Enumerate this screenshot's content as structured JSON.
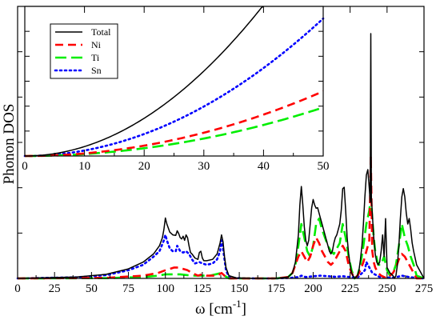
{
  "colors": {
    "Total": "#000000",
    "Ni": "#ff0000",
    "Ti": "#00ee00",
    "Sn": "#0000ff",
    "axes": "#000000",
    "background": "#ffffff"
  },
  "chart_data": [
    {
      "type": "line",
      "role": "main",
      "title": "",
      "xlabel": "ω [cm⁻¹]",
      "xlabel_parts": {
        "base": "ω [cm",
        "sup": "-1",
        "close": "]"
      },
      "ylabel": "Phonon DOS",
      "xlim": [
        0,
        275
      ],
      "ylim": [
        0,
        1.0
      ],
      "grid": false,
      "x_ticks": [
        0,
        25,
        50,
        75,
        100,
        125,
        150,
        175,
        200,
        225,
        250,
        275
      ],
      "x_tick_labels": [
        "0",
        "25",
        "50",
        "75",
        "100",
        "125",
        "150",
        "175",
        "200",
        "225",
        "250",
        "275"
      ],
      "y_tick_labels_visible": false,
      "series": [
        {
          "name": "Total",
          "style": "solid",
          "x": [
            0,
            40,
            60,
            75,
            85,
            92,
            96,
            98,
            99,
            100,
            101,
            103,
            105,
            107,
            108,
            109,
            110,
            111,
            112,
            113,
            114,
            115,
            116,
            117,
            118,
            120,
            122,
            123,
            124,
            125,
            126,
            128,
            132,
            135,
            137,
            138,
            139,
            140,
            141,
            143,
            148,
            160,
            175,
            183,
            186,
            188,
            190,
            191,
            192,
            193,
            194,
            195,
            196,
            197,
            198,
            199,
            200,
            201,
            202,
            203,
            204,
            205,
            206,
            207,
            208,
            209,
            210,
            211,
            212,
            213,
            214,
            215,
            216,
            217,
            218,
            219,
            220,
            221,
            222,
            223,
            224,
            225,
            226,
            228,
            230,
            231,
            232,
            233,
            234,
            235,
            236,
            237,
            238,
            238.6,
            239,
            239.4,
            240,
            241,
            242,
            243,
            244,
            245,
            246,
            247,
            248,
            249,
            250,
            252,
            254,
            255,
            256,
            257,
            258,
            259,
            260,
            261,
            262,
            263,
            264,
            265,
            266,
            267,
            268,
            270,
            275
          ],
          "y": [
            0,
            0.005,
            0.015,
            0.035,
            0.06,
            0.09,
            0.12,
            0.15,
            0.18,
            0.222,
            0.2,
            0.17,
            0.16,
            0.158,
            0.175,
            0.165,
            0.15,
            0.145,
            0.155,
            0.14,
            0.16,
            0.15,
            0.12,
            0.095,
            0.09,
            0.075,
            0.07,
            0.095,
            0.1,
            0.075,
            0.065,
            0.065,
            0.07,
            0.09,
            0.13,
            0.16,
            0.135,
            0.08,
            0.04,
            0.01,
            0.002,
            0.0,
            0.0,
            0.005,
            0.02,
            0.06,
            0.16,
            0.27,
            0.338,
            0.27,
            0.19,
            0.14,
            0.12,
            0.14,
            0.2,
            0.26,
            0.29,
            0.27,
            0.258,
            0.26,
            0.24,
            0.22,
            0.2,
            0.18,
            0.16,
            0.14,
            0.12,
            0.1,
            0.09,
            0.1,
            0.13,
            0.15,
            0.16,
            0.18,
            0.2,
            0.25,
            0.33,
            0.335,
            0.25,
            0.15,
            0.09,
            0.05,
            0.02,
            0.0,
            0.01,
            0.03,
            0.07,
            0.12,
            0.2,
            0.3,
            0.38,
            0.4,
            0.33,
            0.28,
            0.9,
            0.3,
            0.24,
            0.15,
            0.09,
            0.06,
            0.05,
            0.06,
            0.1,
            0.16,
            0.08,
            0.22,
            0.04,
            0.02,
            0.01,
            0.0,
            0.01,
            0.05,
            0.12,
            0.22,
            0.3,
            0.33,
            0.3,
            0.24,
            0.2,
            0.22,
            0.18,
            0.13,
            0.1,
            0.05,
            0.0
          ]
        },
        {
          "name": "Ni",
          "style": "dashed",
          "x": [
            0,
            60,
            85,
            95,
            100,
            103,
            106,
            109,
            112,
            115,
            118,
            122,
            125,
            128,
            135,
            138,
            140,
            143,
            160,
            175,
            183,
            186,
            188,
            190,
            192,
            194,
            196,
            198,
            200,
            202,
            204,
            206,
            208,
            210,
            212,
            214,
            216,
            218,
            220,
            222,
            224,
            226,
            228,
            230,
            232,
            234,
            236,
            238,
            239,
            240,
            241,
            242,
            244,
            246,
            248,
            250,
            252,
            254,
            256,
            258,
            260,
            262,
            264,
            266,
            268,
            270,
            275
          ],
          "y": [
            0,
            0.002,
            0.01,
            0.02,
            0.03,
            0.035,
            0.04,
            0.04,
            0.035,
            0.03,
            0.02,
            0.01,
            0.015,
            0.01,
            0.01,
            0.02,
            0.01,
            0.0,
            0.0,
            0.0,
            0.005,
            0.02,
            0.05,
            0.08,
            0.1,
            0.08,
            0.06,
            0.08,
            0.12,
            0.15,
            0.13,
            0.1,
            0.08,
            0.06,
            0.05,
            0.06,
            0.08,
            0.1,
            0.12,
            0.1,
            0.05,
            0.02,
            0.0,
            0.01,
            0.03,
            0.06,
            0.1,
            0.14,
            0.45,
            0.1,
            0.06,
            0.04,
            0.02,
            0.01,
            0.005,
            0.0,
            0.01,
            0.02,
            0.04,
            0.07,
            0.09,
            0.08,
            0.06,
            0.04,
            0.02,
            0.0,
            0.0
          ]
        },
        {
          "name": "Ti",
          "style": "longdash",
          "x": [
            0,
            60,
            85,
            95,
            100,
            105,
            110,
            115,
            120,
            125,
            130,
            138,
            140,
            143,
            160,
            175,
            183,
            186,
            188,
            190,
            192,
            194,
            196,
            198,
            200,
            202,
            204,
            206,
            208,
            210,
            212,
            214,
            216,
            218,
            220,
            222,
            224,
            226,
            228,
            230,
            232,
            234,
            236,
            238,
            239,
            240,
            241,
            242,
            244,
            246,
            248,
            250,
            252,
            254,
            256,
            258,
            260,
            262,
            264,
            266,
            268,
            270,
            275
          ],
          "y": [
            0,
            0.001,
            0.005,
            0.01,
            0.015,
            0.015,
            0.015,
            0.012,
            0.01,
            0.01,
            0.01,
            0.02,
            0.01,
            0.0,
            0.0,
            0.0,
            0.005,
            0.02,
            0.05,
            0.12,
            0.2,
            0.15,
            0.1,
            0.08,
            0.12,
            0.2,
            0.22,
            0.18,
            0.15,
            0.12,
            0.1,
            0.09,
            0.11,
            0.13,
            0.2,
            0.15,
            0.08,
            0.03,
            0.0,
            0.01,
            0.05,
            0.12,
            0.2,
            0.25,
            0.3,
            0.22,
            0.15,
            0.1,
            0.05,
            0.05,
            0.08,
            0.03,
            0.01,
            0.02,
            0.05,
            0.12,
            0.2,
            0.15,
            0.12,
            0.08,
            0.05,
            0.01,
            0.0
          ]
        },
        {
          "name": "Sn",
          "style": "dotted",
          "x": [
            0,
            40,
            60,
            75,
            85,
            92,
            96,
            99,
            100,
            101,
            103,
            105,
            107,
            108,
            110,
            112,
            114,
            116,
            118,
            120,
            123,
            125,
            128,
            132,
            135,
            137,
            138,
            139,
            140,
            141,
            143,
            148,
            160,
            175,
            185,
            190,
            192,
            195,
            200,
            205,
            210,
            215,
            220,
            225,
            230,
            235,
            236,
            238,
            240,
            245,
            250,
            255,
            260,
            265,
            270,
            275
          ],
          "y": [
            0,
            0.004,
            0.012,
            0.03,
            0.05,
            0.08,
            0.1,
            0.14,
            0.16,
            0.14,
            0.11,
            0.1,
            0.1,
            0.12,
            0.1,
            0.095,
            0.1,
            0.09,
            0.07,
            0.055,
            0.06,
            0.055,
            0.05,
            0.055,
            0.07,
            0.1,
            0.14,
            0.11,
            0.07,
            0.03,
            0.005,
            0.001,
            0.0,
            0.0,
            0.002,
            0.005,
            0.01,
            0.005,
            0.008,
            0.01,
            0.008,
            0.006,
            0.008,
            0.005,
            0.003,
            0.03,
            0.06,
            0.04,
            0.02,
            0.005,
            0.003,
            0.003,
            0.01,
            0.005,
            0.002,
            0.0
          ]
        }
      ],
      "legend": {
        "placement": "inset-upper-left",
        "entries": [
          "Total",
          "Ni",
          "Ti",
          "Sn"
        ]
      }
    },
    {
      "type": "line",
      "role": "inset",
      "title": "",
      "xlabel": "",
      "ylabel": "",
      "xlim": [
        0,
        50
      ],
      "ylim": [
        0,
        0.37
      ],
      "grid": false,
      "x_ticks": [
        0,
        10,
        20,
        30,
        40,
        50
      ],
      "x_tick_labels": [
        "0",
        "10",
        "20",
        "30",
        "40",
        "50"
      ],
      "y_tick_labels_visible": false,
      "series": [
        {
          "name": "Total",
          "style": "solid",
          "model": "quadratic",
          "x": [
            0,
            5,
            10,
            15,
            20,
            25,
            30,
            35,
            40
          ],
          "y": [
            0,
            0.0058,
            0.0233,
            0.0525,
            0.0933,
            0.1458,
            0.21,
            0.2858,
            0.3733
          ]
        },
        {
          "name": "Ni",
          "style": "dashed",
          "model": "quadratic",
          "x": [
            0,
            5,
            10,
            15,
            20,
            25,
            30,
            35,
            40,
            45,
            50
          ],
          "y": [
            0,
            0.0016,
            0.0064,
            0.0144,
            0.0256,
            0.04,
            0.0576,
            0.0784,
            0.1024,
            0.1296,
            0.16
          ]
        },
        {
          "name": "Ti",
          "style": "longdash",
          "model": "quadratic",
          "x": [
            0,
            5,
            10,
            15,
            20,
            25,
            30,
            35,
            40,
            45,
            50
          ],
          "y": [
            0,
            0.0012,
            0.0048,
            0.0108,
            0.0192,
            0.03,
            0.0432,
            0.0588,
            0.0768,
            0.0972,
            0.12
          ]
        },
        {
          "name": "Sn",
          "style": "dotted",
          "model": "quadratic",
          "x": [
            0,
            5,
            10,
            15,
            20,
            25,
            30,
            35,
            40,
            45,
            50
          ],
          "y": [
            0,
            0.0034,
            0.0136,
            0.0306,
            0.0544,
            0.085,
            0.1224,
            0.1666,
            0.2176,
            0.2754,
            0.34
          ]
        }
      ]
    }
  ]
}
